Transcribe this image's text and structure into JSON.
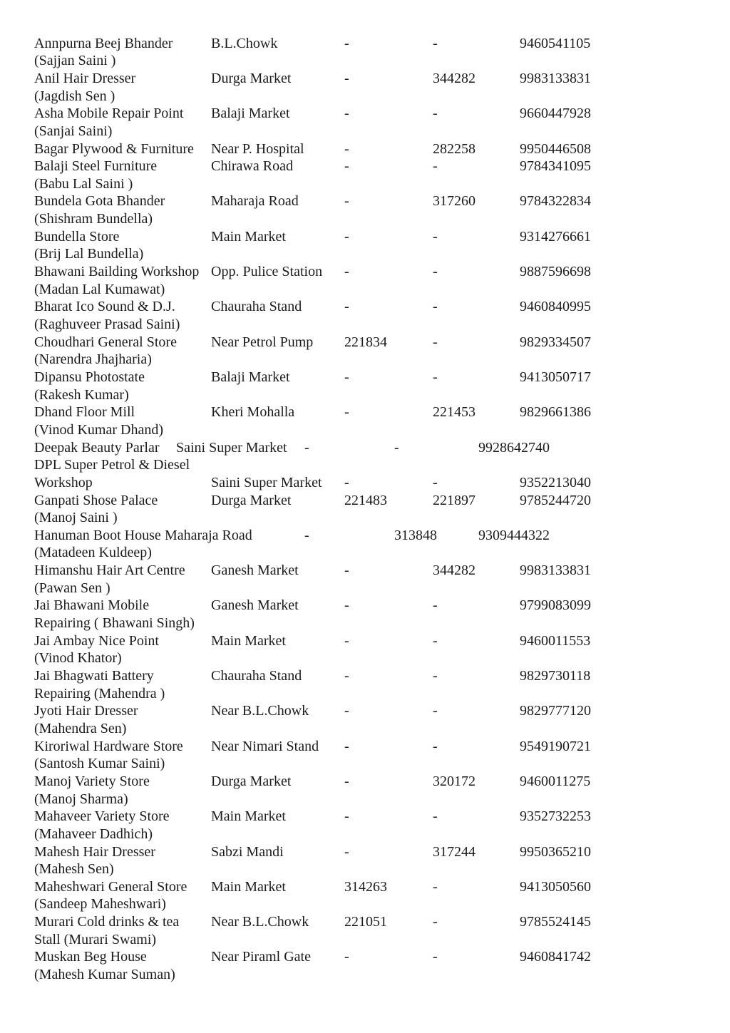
{
  "page": {
    "background_color": "#ffffff",
    "text_color": "#1c1c1c"
  },
  "directory": {
    "entries": [
      {
        "name_lines": [
          "Annpurna Beej Bhander",
          "(Sajjan Saini )"
        ],
        "location": "B.L.Chowk",
        "landline_1": "-",
        "landline_2": "-",
        "phone": "9460541105"
      },
      {
        "name_lines": [
          "Anil Hair Dresser",
          "(Jagdish Sen )"
        ],
        "location": "Durga Market",
        "landline_1": "-",
        "landline_2": "344282",
        "phone": "9983133831"
      },
      {
        "name_lines": [
          "Asha Mobile Repair Point",
          "(Sanjai Saini)"
        ],
        "location": "Balaji Market",
        "landline_1": "-",
        "landline_2": "-",
        "phone": "9660447928"
      },
      {
        "name_lines": [
          "Bagar Plywood & Furniture"
        ],
        "location": "Near P. Hospital",
        "landline_1": "-",
        "landline_2": "282258",
        "phone": "9950446508"
      },
      {
        "name_lines": [
          "Balaji Steel Furniture",
          "(Babu Lal Saini )"
        ],
        "location": "Chirawa Road",
        "landline_1": "-",
        "landline_2": "-",
        "phone": "9784341095"
      },
      {
        "name_lines": [
          "Bundela Gota Bhander",
          "(Shishram Bundella)"
        ],
        "location": "Maharaja Road",
        "landline_1": "-",
        "landline_2": "317260",
        "phone": "9784322834"
      },
      {
        "name_lines": [
          "Bundella Store",
          "(Brij Lal Bundella)"
        ],
        "location": "Main Market",
        "landline_1": "-",
        "landline_2": "-",
        "phone": "9314276661"
      },
      {
        "name_lines": [
          "Bhawani Bailding Workshop",
          "(Madan Lal Kumawat)"
        ],
        "location": "Opp. Pulice Station",
        "landline_1": "-",
        "landline_2": "-",
        "phone": "9887596698"
      },
      {
        "name_lines": [
          "Bharat Ico Sound & D.J.",
          "(Raghuveer Prasad Saini)"
        ],
        "location": "Chauraha Stand",
        "landline_1": "-",
        "landline_2": "-",
        "phone": "9460840995"
      },
      {
        "name_lines": [
          "Choudhari General Store",
          "(Narendra Jhajharia)"
        ],
        "location": "Near Petrol Pump",
        "landline_1": "221834",
        "landline_2": "-",
        "phone": "9829334507"
      },
      {
        "name_lines": [
          "Dipansu Photostate",
          "(Rakesh Kumar)"
        ],
        "location": "Balaji Market",
        "landline_1": "-",
        "landline_2": "-",
        "phone": "9413050717"
      },
      {
        "name_lines": [
          "Dhand Floor Mill",
          "(Vinod Kumar Dhand)"
        ],
        "location": "Kheri Mohalla",
        "landline_1": "-",
        "landline_2": "221453",
        "phone": "9829661386"
      },
      {
        "name_lines": [
          "Deepak Beauty Parlar"
        ],
        "location": "Saini Super Market",
        "landline_1": "-",
        "landline_2": "-",
        "phone": "9928642740",
        "variant": "compact-a"
      },
      {
        "name_lines": [
          "DPL Super Petrol & Diesel",
          "Workshop"
        ],
        "location": "Saini Super Market",
        "landline_1": "-",
        "landline_2": "-",
        "phone": "9352213040",
        "data_line": 1
      },
      {
        "name_lines": [
          "Ganpati Shose Palace",
          "(Manoj Saini )"
        ],
        "location": "Durga Market",
        "landline_1": "221483",
        "landline_2": "221897",
        "phone": "9785244720"
      },
      {
        "name_lines": [
          "Hanuman Boot House",
          "(Matadeen Kuldeep)"
        ],
        "location": "Maharaja Road",
        "landline_1": "-",
        "landline_2": "313848",
        "phone": "9309444322",
        "variant": "compact-b"
      },
      {
        "name_lines": [
          "Himanshu Hair Art Centre",
          "(Pawan Sen )"
        ],
        "location": "Ganesh Market",
        "landline_1": "-",
        "landline_2": "344282",
        "phone": "9983133831"
      },
      {
        "name_lines": [
          "Jai Bhawani Mobile",
          "Repairing ( Bhawani Singh)"
        ],
        "location": "Ganesh Market",
        "landline_1": "-",
        "landline_2": "-",
        "phone": "9799083099"
      },
      {
        "name_lines": [
          "Jai Ambay Nice Point",
          "(Vinod Khator)"
        ],
        "location": "Main Market",
        "landline_1": "-",
        "landline_2": "-",
        "phone": "9460011553"
      },
      {
        "name_lines": [
          "Jai Bhagwati Battery",
          "Repairing (Mahendra )"
        ],
        "location": "Chauraha Stand",
        "landline_1": "-",
        "landline_2": "-",
        "phone": "9829730118"
      },
      {
        "name_lines": [
          "Jyoti Hair Dresser",
          "(Mahendra Sen)"
        ],
        "location": "Near B.L.Chowk",
        "landline_1": "-",
        "landline_2": "-",
        "phone": "9829777120"
      },
      {
        "name_lines": [
          "Kiroriwal Hardware Store",
          "(Santosh Kumar Saini)"
        ],
        "location": "Near Nimari Stand",
        "landline_1": "-",
        "landline_2": "-",
        "phone": "9549190721"
      },
      {
        "name_lines": [
          "Manoj Variety Store",
          "(Manoj Sharma)"
        ],
        "location": "Durga Market",
        "landline_1": "-",
        "landline_2": "320172",
        "phone": "9460011275"
      },
      {
        "name_lines": [
          "Mahaveer Variety Store",
          "(Mahaveer Dadhich)"
        ],
        "location": "Main Market",
        "landline_1": "-",
        "landline_2": "-",
        "phone": "9352732253"
      },
      {
        "name_lines": [
          "Mahesh Hair Dresser",
          "(Mahesh Sen)"
        ],
        "location": "Sabzi Mandi",
        "landline_1": "-",
        "landline_2": "317244",
        "phone": "9950365210"
      },
      {
        "name_lines": [
          "Maheshwari General Store",
          "(Sandeep Maheshwari)"
        ],
        "location": "Main Market",
        "landline_1": "314263",
        "landline_2": "-",
        "phone": "9413050560"
      },
      {
        "name_lines": [
          "Murari Cold drinks & tea",
          "Stall (Murari Swami)"
        ],
        "location": "Near B.L.Chowk",
        "landline_1": "221051",
        "landline_2": "-",
        "phone": "9785524145"
      },
      {
        "name_lines": [
          "Muskan Beg House",
          "(Mahesh Kumar Suman)"
        ],
        "location": "Near Piraml Gate",
        "landline_1": "-",
        "landline_2": "-",
        "phone": "9460841742"
      }
    ]
  }
}
